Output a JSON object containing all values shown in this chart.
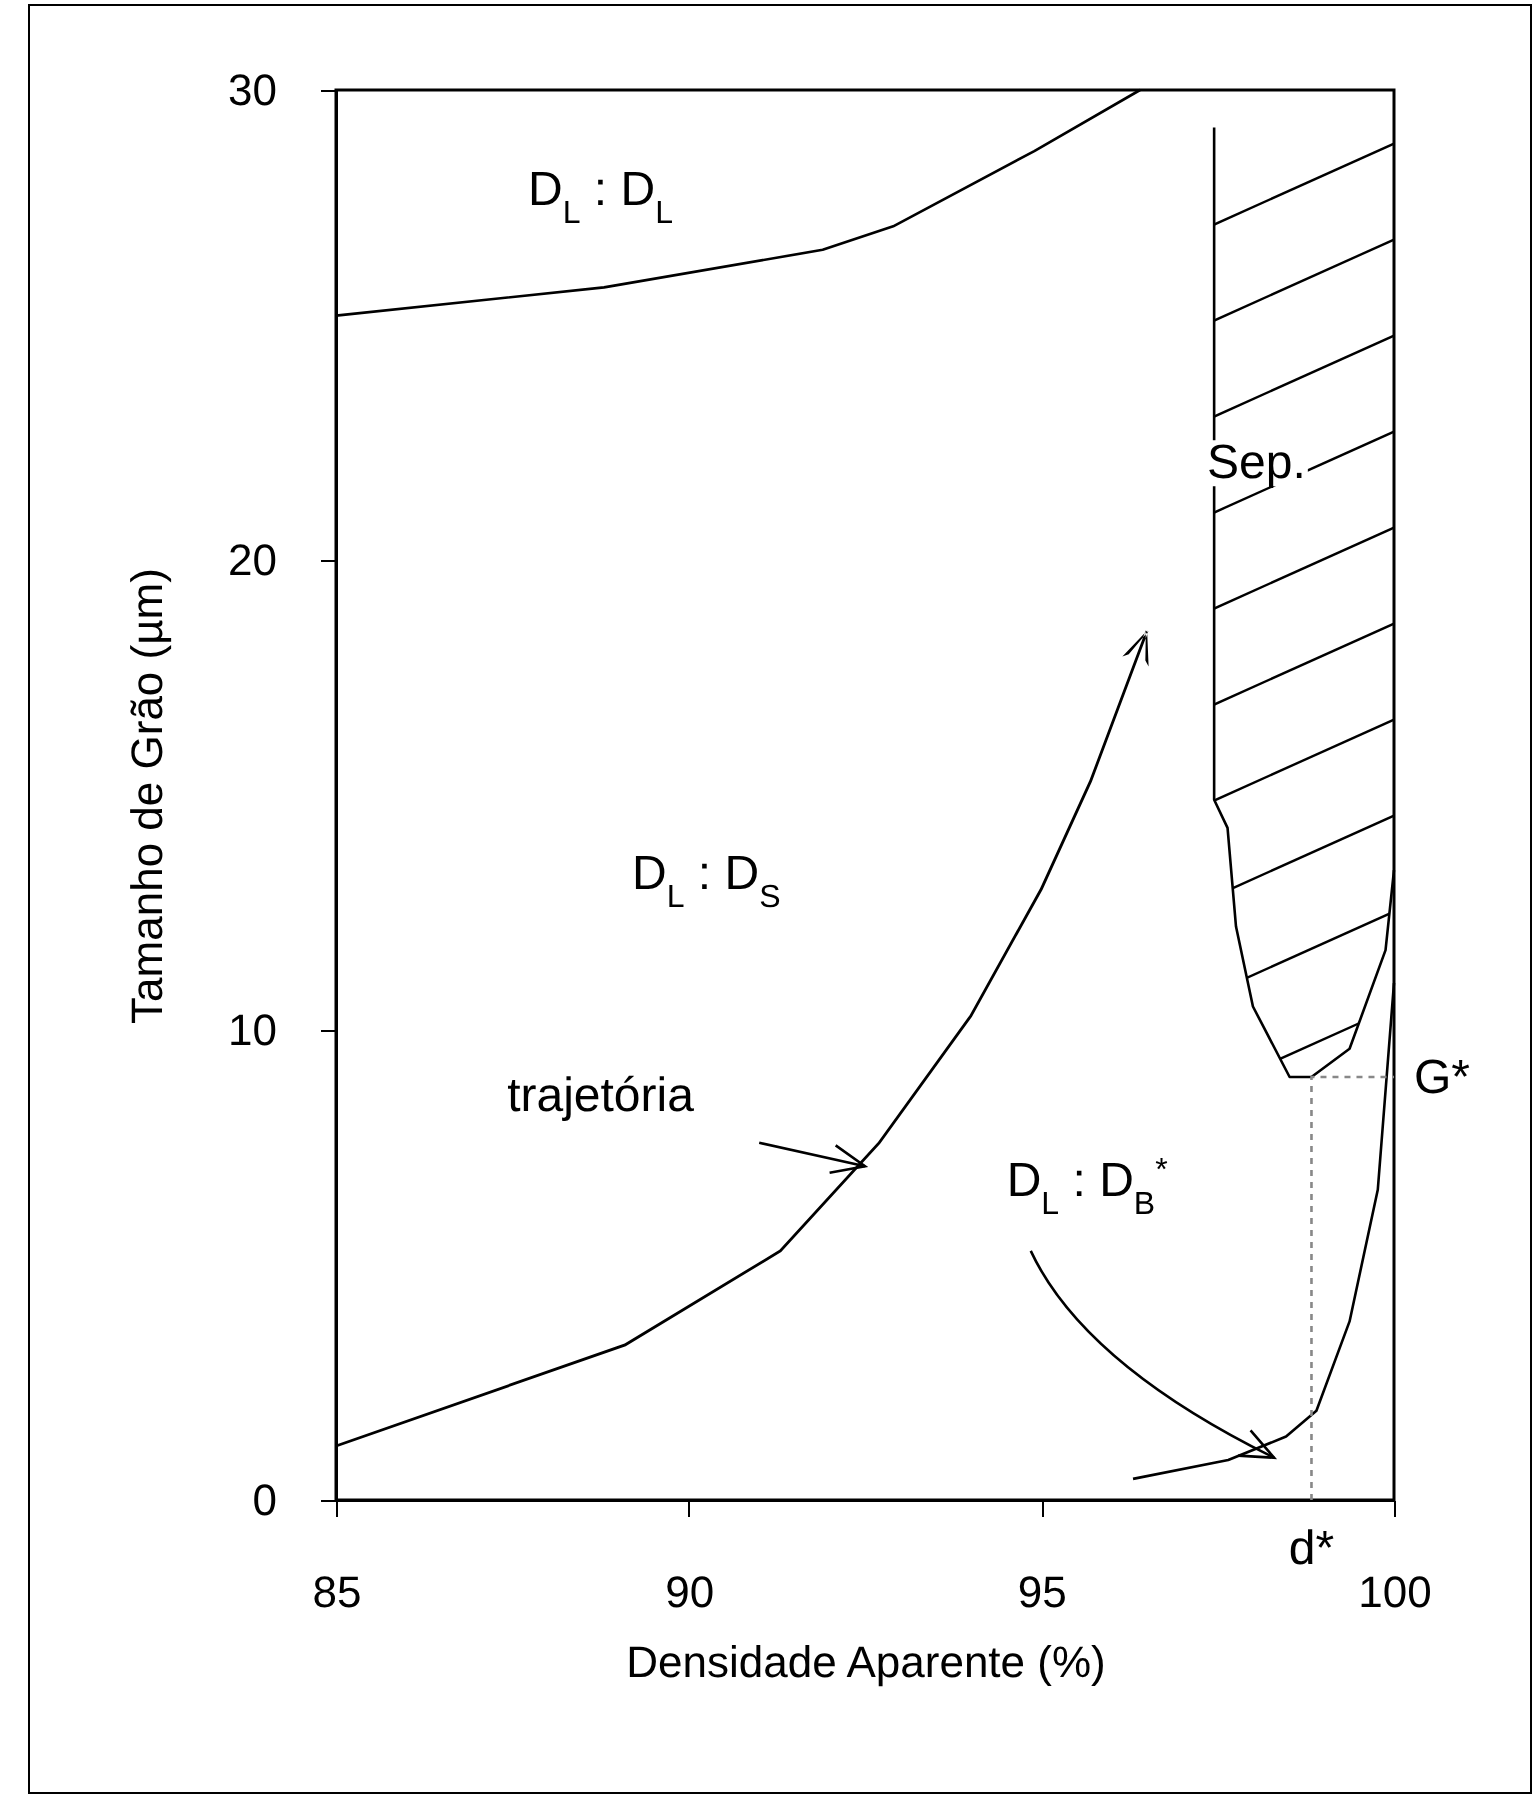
{
  "chart_data": {
    "type": "line",
    "xlabel": "Densidade Aparente (%)",
    "ylabel": "Tamanho de Grão (µm)",
    "xlim": [
      85,
      100
    ],
    "ylim": [
      0,
      30
    ],
    "xticks": [
      85,
      90,
      95,
      100
    ],
    "yticks": [
      0,
      10,
      20,
      30
    ],
    "line_style": "solid",
    "series": [
      {
        "color": "#000000",
        "x": [
          85,
          88.8,
          91.9,
          92.9,
          94.9,
          96.4
        ],
        "values": [
          25.2,
          25.8,
          26.6,
          27.1,
          28.7,
          30.0
        ]
      },
      {
        "color": "#000000",
        "x": [
          97.45,
          97.45,
          97.64,
          97.76,
          98.0,
          98.52,
          98.83,
          99.37,
          99.88,
          100
        ],
        "values": [
          29.2,
          14.9,
          14.3,
          12.2,
          10.5,
          9.0,
          9.0,
          9.6,
          11.7,
          13.4
        ]
      },
      {
        "color": "#000000",
        "x": [
          96.3,
          97.65,
          98.47,
          98.9,
          99.37,
          99.77,
          100
        ],
        "values": [
          0.45,
          0.85,
          1.35,
          1.9,
          3.8,
          6.6,
          11.0
        ]
      },
      {
        "color": "#888888",
        "line_style": "dotted",
        "x": [
          98.83,
          98.83,
          100
        ],
        "values": [
          0,
          9.0,
          9.0
        ]
      }
    ],
    "annotations": [
      "D$_{L}$ : D$_{L}$",
      "D$_{L}$ : D$_{S}$",
      "Sep.",
      "trajetória",
      "D$_{L}$ : D$_{B}$$^{*}$",
      {
        "text": "G*",
        "x": 100,
        "y": 9.0
      },
      {
        "text": "d*",
        "x": 98.83,
        "y": 0
      }
    ]
  }
}
